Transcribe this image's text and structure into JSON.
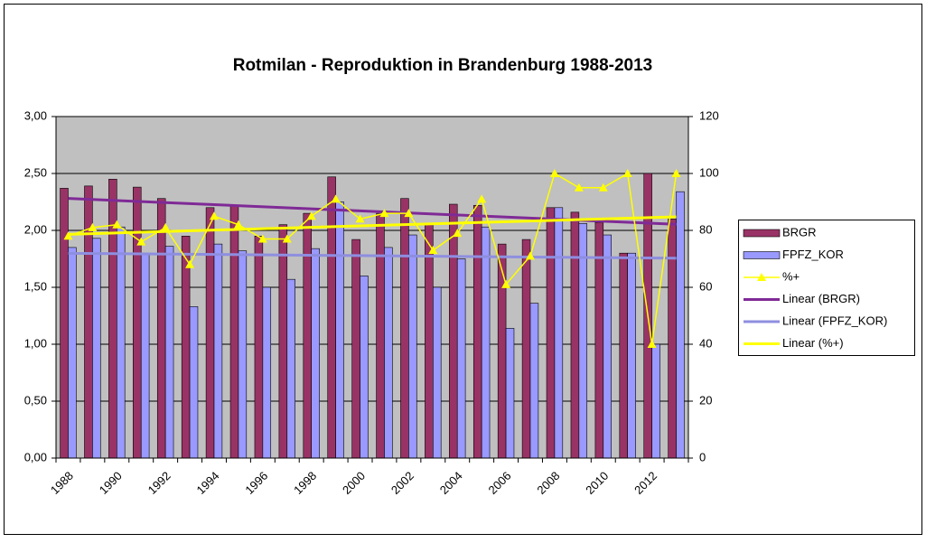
{
  "chart_data": {
    "type": "bar",
    "title": "Rotmilan - Reproduktion in Brandenburg 1988-2013",
    "categories": [
      "1988",
      null,
      "1990",
      null,
      "1992",
      null,
      "1994",
      null,
      "1996",
      null,
      "1998",
      null,
      "2000",
      null,
      "2002",
      null,
      "2004",
      null,
      "2006",
      null,
      "2008",
      null,
      "2010",
      null,
      "2012",
      null
    ],
    "series": [
      {
        "name": "BRGR",
        "color": "#993366",
        "type": "bar",
        "values": [
          2.37,
          2.39,
          2.45,
          2.38,
          2.28,
          1.95,
          2.2,
          2.22,
          1.95,
          2.05,
          2.15,
          2.47,
          1.92,
          2.15,
          2.28,
          2.05,
          2.23,
          2.22,
          1.88,
          1.92,
          2.2,
          2.16,
          2.07,
          1.8,
          2.5,
          2.1
        ]
      },
      {
        "name": "FPFZ_KOR",
        "color": "#9999ff",
        "type": "bar",
        "values": [
          1.85,
          1.93,
          2.03,
          1.8,
          1.86,
          1.33,
          1.88,
          1.82,
          1.5,
          1.57,
          1.84,
          2.25,
          1.6,
          1.85,
          1.96,
          1.5,
          1.75,
          2.03,
          1.14,
          1.36,
          2.2,
          2.06,
          1.96,
          1.8,
          1.0,
          2.34
        ]
      },
      {
        "name": "%+",
        "color": "#ffff00",
        "type": "line",
        "axis": "y2",
        "values": [
          78,
          81,
          82,
          76,
          81,
          68,
          85,
          82,
          77,
          77,
          85,
          91,
          84,
          86,
          86,
          73,
          79,
          91,
          61,
          71,
          100,
          95,
          95,
          100,
          40,
          100
        ]
      }
    ],
    "trendlines": [
      {
        "name": "Linear (BRGR)",
        "color": "#7f2a96"
      },
      {
        "name": "Linear (FPFZ_KOR)",
        "color": "#8e8ee0"
      },
      {
        "name": "Linear (%+)",
        "color": "#ffff00"
      }
    ],
    "ylim": [
      0,
      3
    ],
    "yticks": [
      {
        "value": 0,
        "label": "0,00"
      },
      {
        "value": 0.5,
        "label": "0,50"
      },
      {
        "value": 1,
        "label": "1,00"
      },
      {
        "value": 1.5,
        "label": "1,50"
      },
      {
        "value": 2,
        "label": "2,00"
      },
      {
        "value": 2.5,
        "label": "2,50"
      },
      {
        "value": 3,
        "label": "3,00"
      }
    ],
    "y2lim": [
      0,
      120
    ],
    "y2ticks": [
      0,
      20,
      40,
      60,
      80,
      100,
      120
    ],
    "grid": true,
    "legend": "right"
  }
}
